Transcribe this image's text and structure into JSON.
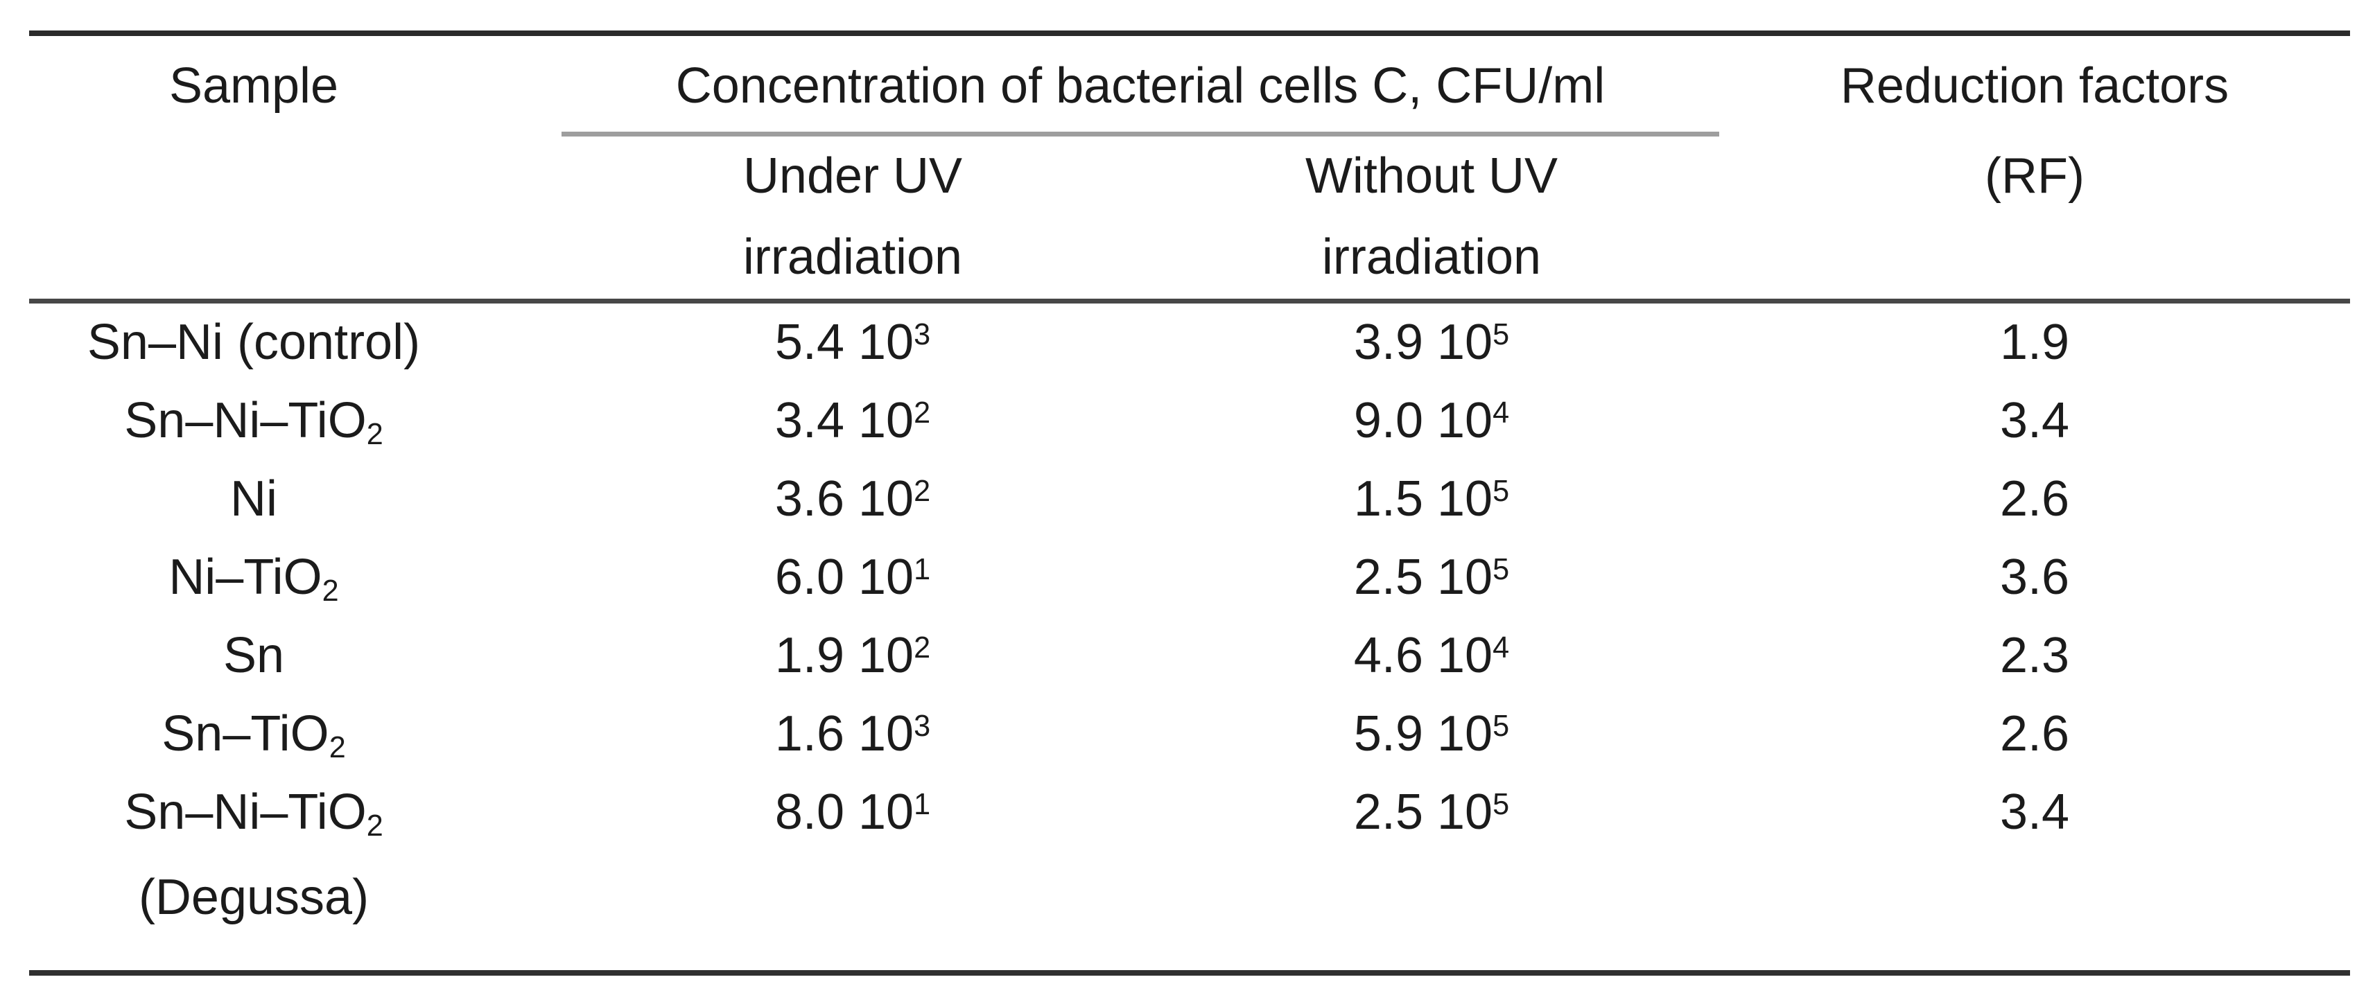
{
  "header": {
    "sample": "Sample",
    "concentration_group": "Concentration of bacterial cells C, CFU/ml",
    "under_uv": [
      "Under UV",
      "irradiation"
    ],
    "without_uv": [
      "Without UV",
      "irradiation"
    ],
    "reduction": [
      "Reduction factors",
      "(RF)"
    ]
  },
  "rows": [
    {
      "sample": "Sn–Ni (control)",
      "sample_sub": "",
      "sample_note": "",
      "under_uv": "5.4 10",
      "under_uv_exp": "3",
      "without_uv": "3.9 10",
      "without_uv_exp": "5",
      "rf": "1.9"
    },
    {
      "sample": "Sn–Ni–TiO",
      "sample_sub": "2",
      "sample_note": "",
      "under_uv": "3.4 10",
      "under_uv_exp": "2",
      "without_uv": "9.0 10",
      "without_uv_exp": "4",
      "rf": "3.4"
    },
    {
      "sample": "Ni",
      "sample_sub": "",
      "sample_note": "",
      "under_uv": "3.6 10",
      "under_uv_exp": "2",
      "without_uv": "1.5 10",
      "without_uv_exp": "5",
      "rf": "2.6"
    },
    {
      "sample": "Ni–TiO",
      "sample_sub": "2",
      "sample_note": "",
      "under_uv": "6.0 10",
      "under_uv_exp": "1",
      "without_uv": "2.5 10",
      "without_uv_exp": "5",
      "rf": "3.6"
    },
    {
      "sample": "Sn",
      "sample_sub": "",
      "sample_note": "",
      "under_uv": "1.9 10",
      "under_uv_exp": "2",
      "without_uv": "4.6 10",
      "without_uv_exp": "4",
      "rf": "2.3"
    },
    {
      "sample": "Sn–TiO",
      "sample_sub": "2",
      "sample_note": "",
      "under_uv": "1.6 10",
      "under_uv_exp": "3",
      "without_uv": "5.9 10",
      "without_uv_exp": "5",
      "rf": "2.6"
    },
    {
      "sample": "Sn–Ni–TiO",
      "sample_sub": "2",
      "sample_note": "(Degussa)",
      "under_uv": "8.0 10",
      "under_uv_exp": "1",
      "without_uv": "2.5 10",
      "without_uv_exp": "5",
      "rf": "3.4"
    }
  ],
  "chart_data": {
    "type": "table",
    "columns": [
      "Sample",
      "Concentration of bacterial cells C, CFU/ml — Under UV irradiation",
      "Concentration of bacterial cells C, CFU/ml — Without UV irradiation",
      "Reduction factors (RF)"
    ],
    "rows": [
      [
        "Sn–Ni (control)",
        "5.4 10^3",
        "3.9 10^5",
        "1.9"
      ],
      [
        "Sn–Ni–TiO2",
        "3.4 10^2",
        "9.0 10^4",
        "3.4"
      ],
      [
        "Ni",
        "3.6 10^2",
        "1.5 10^5",
        "2.6"
      ],
      [
        "Ni–TiO2",
        "6.0 10^1",
        "2.5 10^5",
        "3.6"
      ],
      [
        "Sn",
        "1.9 10^2",
        "4.6 10^4",
        "2.3"
      ],
      [
        "Sn–TiO2",
        "1.6 10^3",
        "5.9 10^5",
        "2.6"
      ],
      [
        "Sn–Ni–TiO2 (Degussa)",
        "8.0 10^1",
        "2.5 10^5",
        "3.4"
      ]
    ]
  }
}
